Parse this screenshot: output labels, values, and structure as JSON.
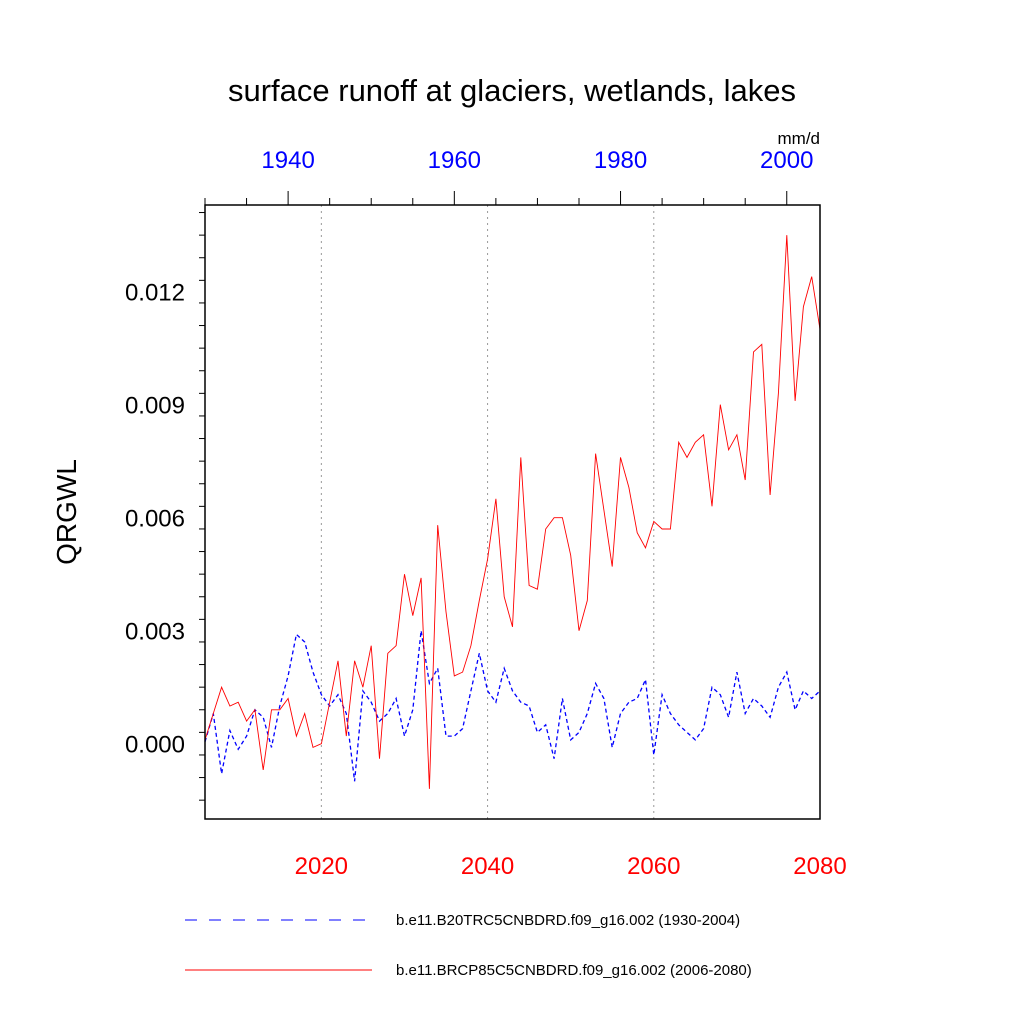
{
  "chart_data": {
    "type": "line",
    "title": "surface runoff at glaciers, wetlands, lakes",
    "units": "mm/d",
    "ylabel": "QRGWL",
    "xlabel": "",
    "ylim": [
      -0.002,
      0.0143
    ],
    "yticks": [
      0.0,
      0.003,
      0.006,
      0.009,
      0.012
    ],
    "ytick_labels": [
      "0.000",
      "0.003",
      "0.006",
      "0.009",
      "0.012"
    ],
    "bottom_axis": {
      "range": [
        2006,
        2080
      ],
      "ticks": [
        2020,
        2040,
        2060,
        2080
      ],
      "tick_labels": [
        "2020",
        "2040",
        "2060",
        "2080"
      ],
      "color": "#ff0000"
    },
    "top_axis": {
      "range": [
        1930,
        2004
      ],
      "ticks": [
        1940,
        1960,
        1980,
        2000
      ],
      "tick_labels": [
        "1940",
        "1960",
        "1980",
        "2000"
      ],
      "color": "#0000ff"
    },
    "grid": "vertical dotted lines at bottom-axis ticks",
    "series": [
      {
        "name": "b.e11.B20TRC5CNBDRD.f09_g16.002 (1930-2004)",
        "axis": "top",
        "color": "#0000ff",
        "dash": "dashed",
        "x": [
          1930,
          1931,
          1932,
          1933,
          1934,
          1935,
          1936,
          1937,
          1938,
          1939,
          1940,
          1941,
          1942,
          1943,
          1944,
          1945,
          1946,
          1947,
          1948,
          1949,
          1950,
          1951,
          1952,
          1953,
          1954,
          1955,
          1956,
          1957,
          1958,
          1959,
          1960,
          1961,
          1962,
          1963,
          1964,
          1965,
          1966,
          1967,
          1968,
          1969,
          1970,
          1971,
          1972,
          1973,
          1974,
          1975,
          1976,
          1977,
          1978,
          1979,
          1980,
          1981,
          1982,
          1983,
          1984,
          1985,
          1986,
          1987,
          1988,
          1989,
          1990,
          1991,
          1992,
          1993,
          1994,
          1995,
          1996,
          1997,
          1998,
          1999,
          2000,
          2001,
          2002,
          2003,
          2004
        ],
        "values": [
          5e-05,
          0.0008,
          -0.0008,
          0.00035,
          -0.00015,
          0.0002,
          0.0009,
          0.0007,
          -0.0001,
          0.001,
          0.0018,
          0.0029,
          0.0027,
          0.0019,
          0.0013,
          0.001,
          0.0013,
          0.0008,
          -0.001,
          0.0014,
          0.0011,
          0.0006,
          0.0008,
          0.0012,
          0.0002,
          0.0009,
          0.003,
          0.0016,
          0.002,
          0.0002,
          0.0002,
          0.0004,
          0.0014,
          0.0024,
          0.0014,
          0.0011,
          0.002,
          0.0014,
          0.0011,
          0.001,
          0.0003,
          0.0005,
          -0.0004,
          0.0012,
          0.0001,
          0.0003,
          0.0008,
          0.0016,
          0.0012,
          -0.0001,
          0.0008,
          0.0011,
          0.0012,
          0.0017,
          -0.0003,
          0.0013,
          0.0008,
          0.0005,
          0.0003,
          0.0001,
          0.0004,
          0.0015,
          0.0013,
          0.0007,
          0.0019,
          0.0008,
          0.0012,
          0.001,
          0.0007,
          0.0015,
          0.0019,
          0.0009,
          0.0014,
          0.0012,
          0.0014
        ]
      },
      {
        "name": "b.e11.BRCP85C5CNBDRD.f09_g16.002 (2006-2080)",
        "axis": "bottom",
        "color": "#ff0000",
        "dash": "solid",
        "x": [
          2006,
          2007,
          2008,
          2009,
          2010,
          2011,
          2012,
          2013,
          2014,
          2015,
          2016,
          2017,
          2018,
          2019,
          2020,
          2021,
          2022,
          2023,
          2024,
          2025,
          2026,
          2027,
          2028,
          2029,
          2030,
          2031,
          2032,
          2033,
          2034,
          2035,
          2036,
          2037,
          2038,
          2039,
          2040,
          2041,
          2042,
          2043,
          2044,
          2045,
          2046,
          2047,
          2048,
          2049,
          2050,
          2051,
          2052,
          2053,
          2054,
          2055,
          2056,
          2057,
          2058,
          2059,
          2060,
          2061,
          2062,
          2063,
          2064,
          2065,
          2066,
          2067,
          2068,
          2069,
          2070,
          2071,
          2072,
          2073,
          2074,
          2075,
          2076,
          2077,
          2078,
          2079,
          2080
        ],
        "values": [
          0.0001,
          0.0008,
          0.0015,
          0.001,
          0.0011,
          0.0006,
          0.0009,
          -0.0007,
          0.0009,
          0.0009,
          0.0012,
          0.0002,
          0.0008,
          -0.0001,
          0.0,
          0.0011,
          0.0022,
          0.0002,
          0.0022,
          0.0015,
          0.0026,
          -0.0004,
          0.0024,
          0.0026,
          0.0045,
          0.0034,
          0.0044,
          -0.0012,
          0.0058,
          0.0035,
          0.0018,
          0.0019,
          0.0026,
          0.0038,
          0.0049,
          0.0065,
          0.0039,
          0.0031,
          0.0076,
          0.0042,
          0.0041,
          0.0057,
          0.006,
          0.006,
          0.005,
          0.003,
          0.0038,
          0.0077,
          0.0062,
          0.0047,
          0.0076,
          0.0068,
          0.0056,
          0.0052,
          0.0059,
          0.0057,
          0.0057,
          0.008,
          0.0076,
          0.008,
          0.0082,
          0.0063,
          0.009,
          0.0078,
          0.0082,
          0.007,
          0.0104,
          0.0106,
          0.0066,
          0.0093,
          0.0135,
          0.0091,
          0.0116,
          0.0124,
          0.011
        ]
      }
    ],
    "legend": {
      "placement": "bottom"
    }
  }
}
